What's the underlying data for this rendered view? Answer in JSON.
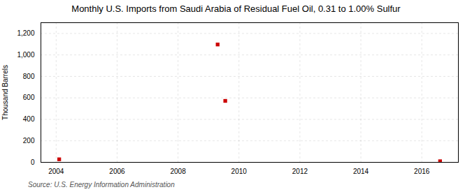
{
  "chart_data": {
    "type": "scatter",
    "title": "Monthly U.S. Imports from Saudi Arabia of Residual Fuel Oil, 0.31 to 1.00% Sulfur",
    "ylabel": "Thousand Barrels",
    "source": "Source: U.S. Energy Information Administration",
    "x": [
      2004.1,
      2009.3,
      2009.55,
      2016.6
    ],
    "values": [
      28,
      1097,
      572,
      10
    ],
    "color": "#CC0000",
    "marker": "square",
    "xlim": [
      2003.5,
      2017.2
    ],
    "xticks": [
      2004,
      2006,
      2008,
      2010,
      2012,
      2014,
      2016
    ],
    "ylim": [
      0,
      1300
    ],
    "yticks": [
      0,
      200,
      400,
      600,
      800,
      {
        "value": 1000,
        "label": "1,000"
      },
      {
        "value": 1200,
        "label": "1,200"
      }
    ],
    "grid": true
  }
}
